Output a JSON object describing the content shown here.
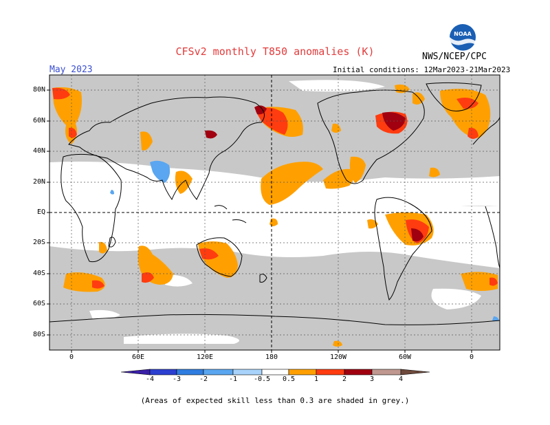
{
  "header": {
    "title": "CFSv2 monthly T850 anomalies (K)",
    "month": "May 2023",
    "initial_conditions": "Initial conditions: 12Mar2023-21Mar2023",
    "agency": "NWS/NCEP/CPC",
    "logo_text": "NOAA"
  },
  "axes": {
    "lat_labels": [
      "80N",
      "60N",
      "40N",
      "20N",
      "EQ",
      "20S",
      "40S",
      "60S",
      "80S"
    ],
    "lon_labels": [
      "0",
      "60E",
      "120E",
      "180",
      "120W",
      "60W",
      "0"
    ]
  },
  "colorbar": {
    "labels": [
      "-4",
      "-3",
      "-2",
      "-1",
      "-0.5",
      "0.5",
      "1",
      "2",
      "3",
      "4"
    ],
    "colors": [
      "#3a1fa8",
      "#2b3fd1",
      "#2f7de0",
      "#5aa6f0",
      "#a9d3fb",
      "#ffffff",
      "#ffa000",
      "#ff3c10",
      "#a00010",
      "#c09890",
      "#6e4a3c"
    ]
  },
  "legend_colors": {
    "low_skill_grey": "#c8c8c8",
    "ocean_background": "#ffffff"
  },
  "footnote": "(Areas of expected skill less than 0.3 are shaded in grey.)"
}
